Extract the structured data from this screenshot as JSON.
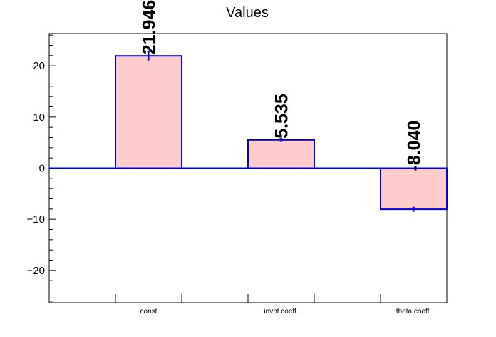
{
  "chart_data": {
    "type": "bar",
    "title": "Values",
    "xlabel": "",
    "ylabel": "",
    "categories": [
      "",
      "const",
      "",
      "invpt coeff.",
      "",
      "theta coeff."
    ],
    "values": [
      0,
      21.946,
      0,
      5.535,
      0,
      -8.04
    ],
    "value_labels": [
      "",
      "21.946",
      "",
      "5.535",
      "",
      "-8.040"
    ],
    "errors": [
      0,
      0.8,
      0,
      0.3,
      0,
      0.4
    ],
    "ylim": [
      -26.3,
      26.3
    ],
    "yticks": [
      -20,
      -10,
      0,
      10,
      20
    ],
    "ytick_labels": [
      "−20",
      "−10",
      "0",
      "10",
      "20"
    ],
    "grid": false,
    "colors": {
      "bar_fill": "#ffcccc",
      "bar_line": "#0000dd",
      "baseline": "#0000dd",
      "axis": "#000000"
    }
  }
}
